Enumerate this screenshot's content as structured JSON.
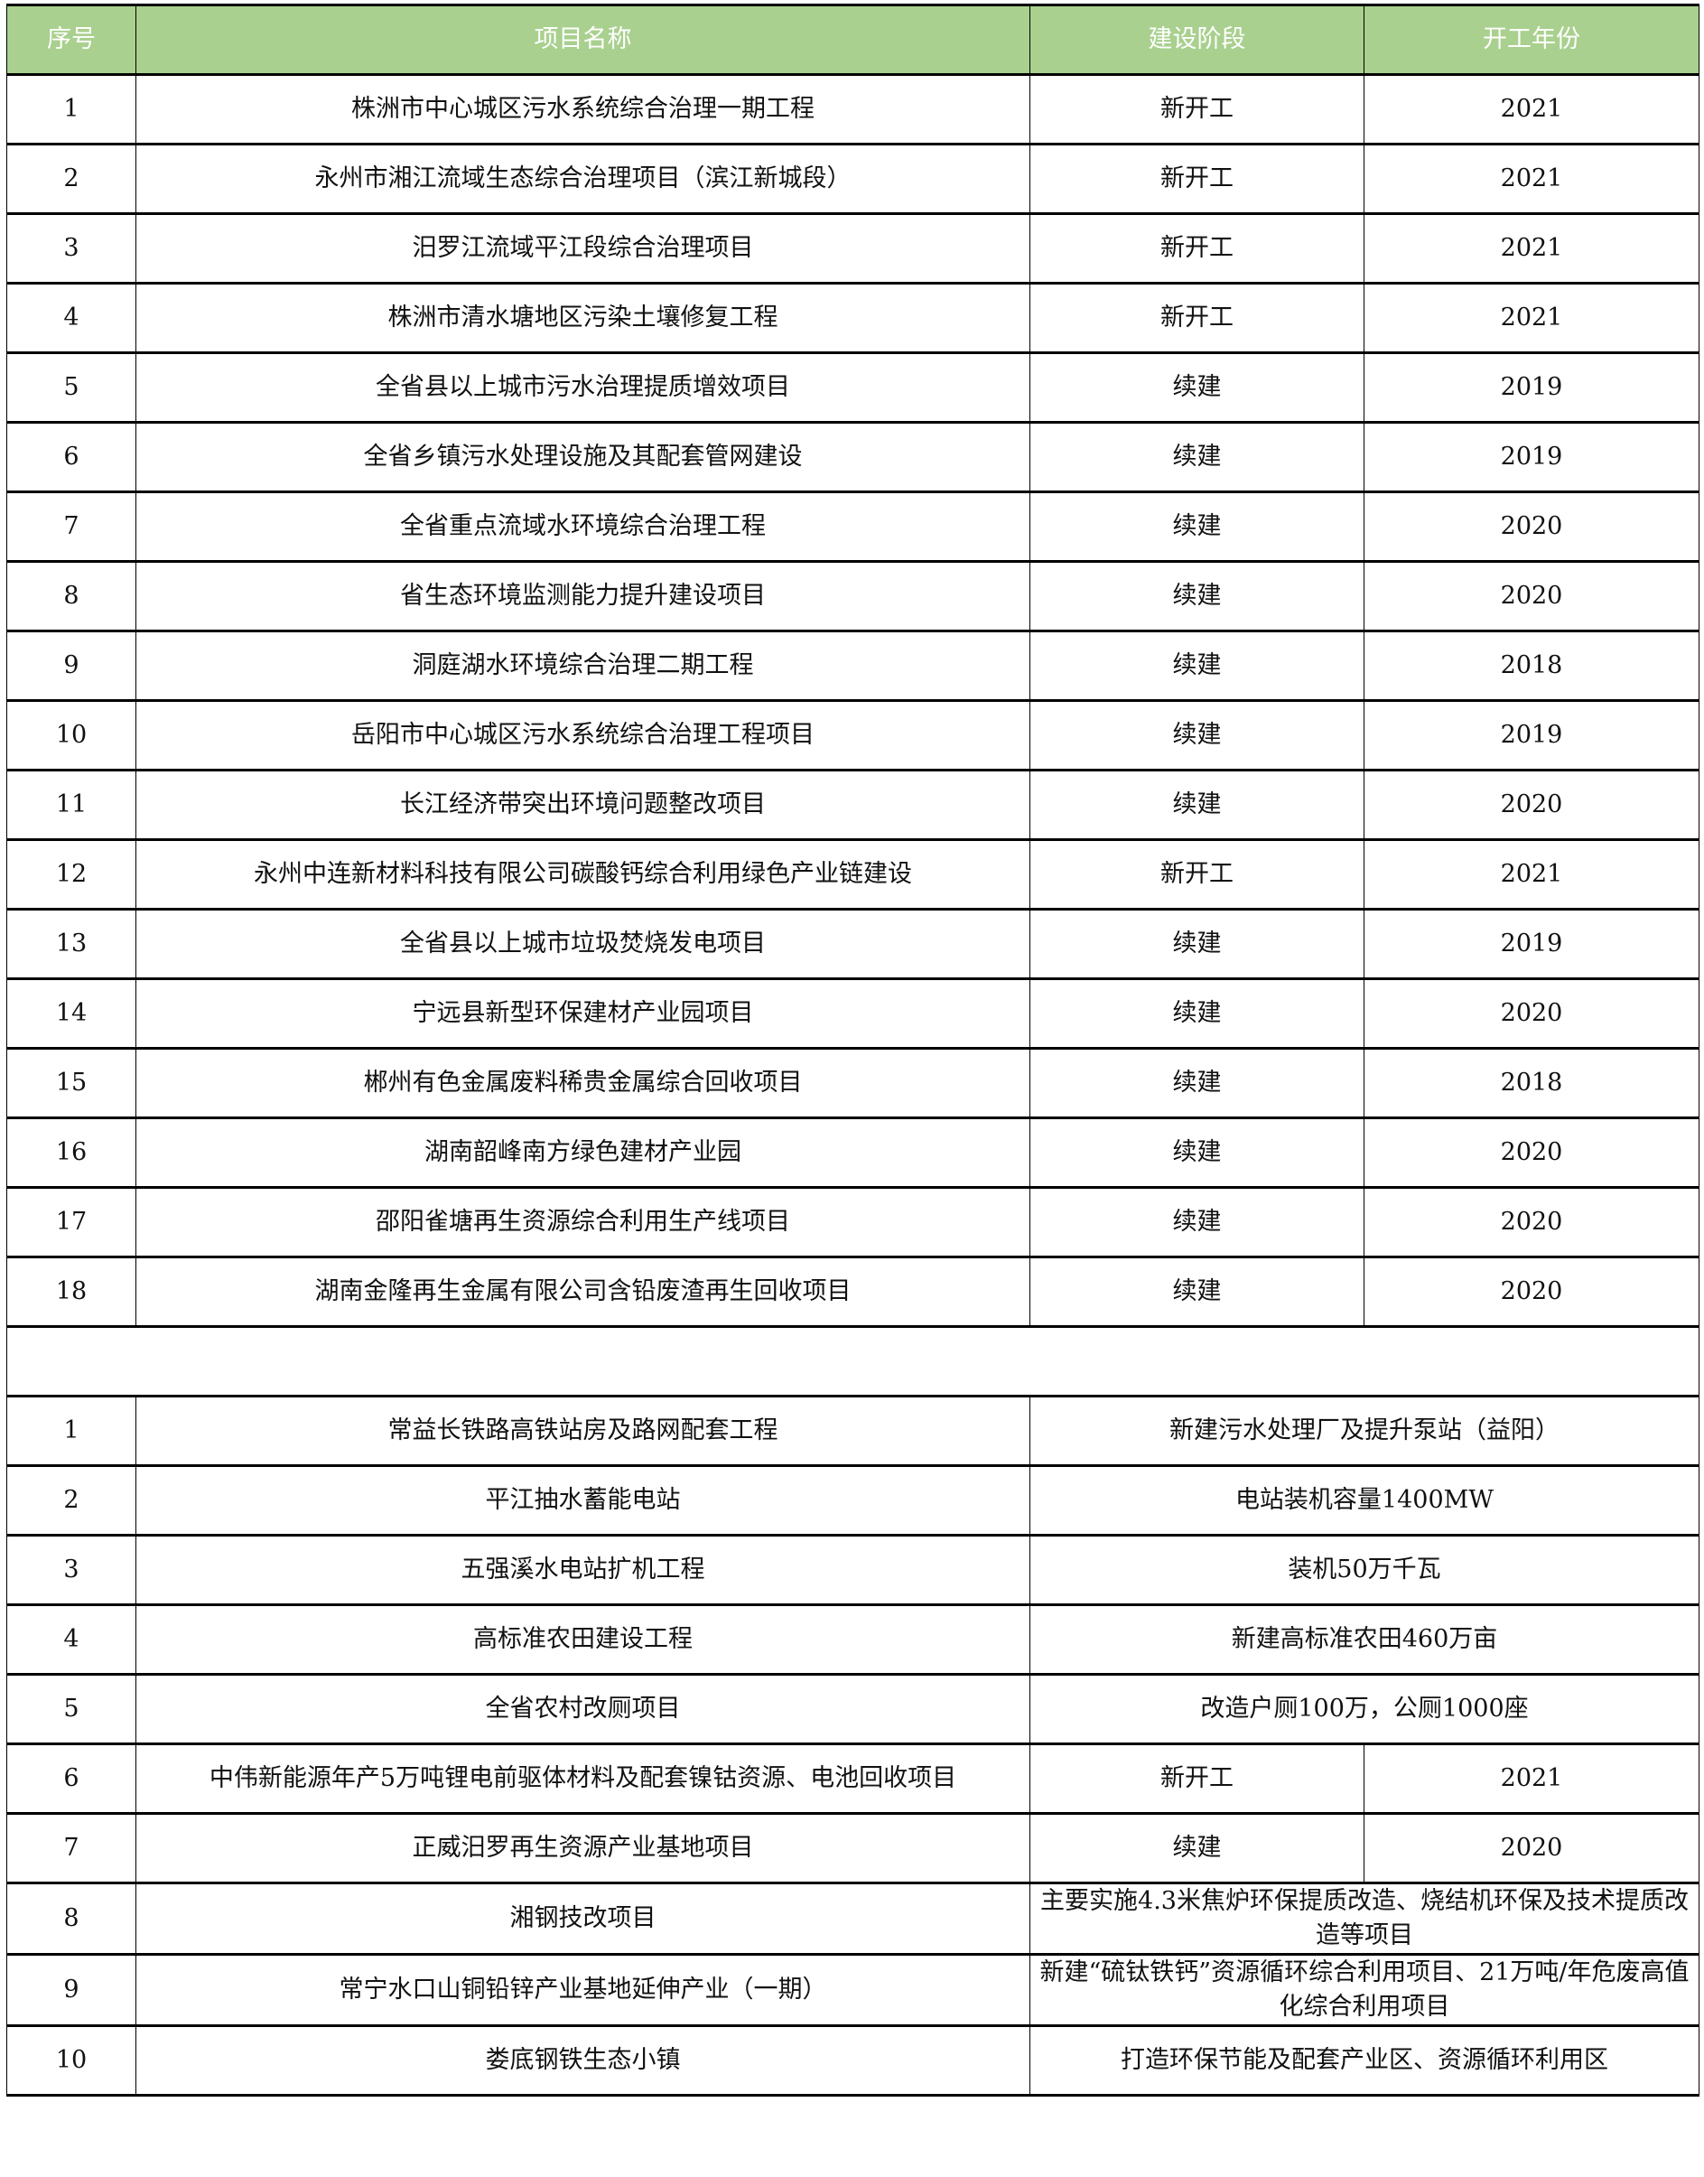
{
  "header": {
    "no": "序号",
    "name": "项目名称",
    "stage": "建设阶段",
    "year": "开工年份"
  },
  "section1": [
    {
      "no": "1",
      "name": "株洲市中心城区污水系统综合治理一期工程",
      "stage": "新开工",
      "year": "2021"
    },
    {
      "no": "2",
      "name": "永州市湘江流域生态综合治理项目（滨江新城段）",
      "stage": "新开工",
      "year": "2021"
    },
    {
      "no": "3",
      "name": "汨罗江流域平江段综合治理项目",
      "stage": "新开工",
      "year": "2021"
    },
    {
      "no": "4",
      "name": "株洲市清水塘地区污染土壤修复工程",
      "stage": "新开工",
      "year": "2021"
    },
    {
      "no": "5",
      "name": "全省县以上城市污水治理提质增效项目",
      "stage": "续建",
      "year": "2019"
    },
    {
      "no": "6",
      "name": "全省乡镇污水处理设施及其配套管网建设",
      "stage": "续建",
      "year": "2019"
    },
    {
      "no": "7",
      "name": "全省重点流域水环境综合治理工程",
      "stage": "续建",
      "year": "2020"
    },
    {
      "no": "8",
      "name": "省生态环境监测能力提升建设项目",
      "stage": "续建",
      "year": "2020"
    },
    {
      "no": "9",
      "name": "洞庭湖水环境综合治理二期工程",
      "stage": "续建",
      "year": "2018"
    },
    {
      "no": "10",
      "name": "岳阳市中心城区污水系统综合治理工程项目",
      "stage": "续建",
      "year": "2019"
    },
    {
      "no": "11",
      "name": "长江经济带突出环境问题整改项目",
      "stage": "续建",
      "year": "2020"
    },
    {
      "no": "12",
      "name": "永州中连新材料科技有限公司碳酸钙综合利用绿色产业链建设",
      "stage": "新开工",
      "year": "2021"
    },
    {
      "no": "13",
      "name": "全省县以上城市垃圾焚烧发电项目",
      "stage": "续建",
      "year": "2019"
    },
    {
      "no": "14",
      "name": "宁远县新型环保建材产业园项目",
      "stage": "续建",
      "year": "2020"
    },
    {
      "no": "15",
      "name": "郴州有色金属废料稀贵金属综合回收项目",
      "stage": "续建",
      "year": "2018"
    },
    {
      "no": "16",
      "name": "湖南韶峰南方绿色建材产业园",
      "stage": "续建",
      "year": "2020"
    },
    {
      "no": "17",
      "name": "邵阳雀塘再生资源综合利用生产线项目",
      "stage": "续建",
      "year": "2020"
    },
    {
      "no": "18",
      "name": "湖南金隆再生金属有限公司含铅废渣再生回收项目",
      "stage": "续建",
      "year": "2020"
    }
  ],
  "section2": [
    {
      "no": "1",
      "name": "常益长铁路高铁站房及路网配套工程",
      "detail": "新建污水处理厂及提升泵站（益阳）"
    },
    {
      "no": "2",
      "name": "平江抽水蓄能电站",
      "detail": "电站装机容量1400MW"
    },
    {
      "no": "3",
      "name": "五强溪水电站扩机工程",
      "detail": "装机50万千瓦"
    },
    {
      "no": "4",
      "name": "高标准农田建设工程",
      "detail": "新建高标准农田460万亩"
    },
    {
      "no": "5",
      "name": "全省农村改厕项目",
      "detail": "改造户厕100万，公厕1000座"
    },
    {
      "no": "6",
      "name": "中伟新能源年产5万吨锂电前驱体材料及配套镍钴资源、电池回收项目",
      "stage": "新开工",
      "year": "2021"
    },
    {
      "no": "7",
      "name": "正威汨罗再生资源产业基地项目",
      "stage": "续建",
      "year": "2020"
    },
    {
      "no": "8",
      "name": "湘钢技改项目",
      "detail": "主要实施4.3米焦炉环保提质改造、烧结机环保及技术提质改造等项目"
    },
    {
      "no": "9",
      "name": "常宁水口山铜铅锌产业基地延伸产业（一期）",
      "detail": "新建“硫钛铁钙”资源循环综合利用项目、21万吨/年危废高值化综合利用项目"
    },
    {
      "no": "10",
      "name": "娄底钢铁生态小镇",
      "detail": "打造环保节能及配套产业区、资源循环利用区"
    }
  ],
  "colors": {
    "header_bg": "#a9d08e",
    "header_text": "#ffffff"
  }
}
